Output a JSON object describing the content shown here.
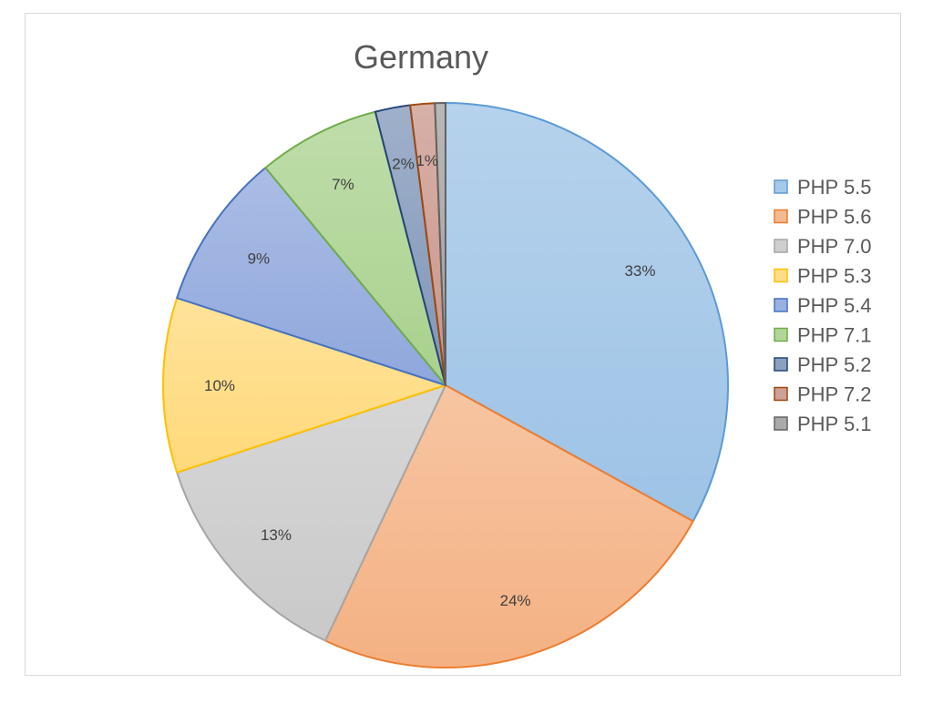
{
  "chart_data": {
    "type": "pie",
    "title": "Germany",
    "categories": [
      "PHP 5.5",
      "PHP 5.6",
      "PHP 7.0",
      "PHP 5.3",
      "PHP 5.4",
      "PHP 7.1",
      "PHP 5.2",
      "PHP 7.2",
      "PHP 5.1"
    ],
    "values": [
      33,
      24,
      13,
      10,
      9,
      7,
      2,
      1.4,
      0.6
    ],
    "data_labels": [
      "33%",
      "24%",
      "13%",
      "10%",
      "9%",
      "7%",
      "2%",
      "1%",
      ""
    ],
    "colors": [
      "#9dc3e6",
      "#f4b183",
      "#c9c9c9",
      "#ffd97a",
      "#8fa7dc",
      "#a9d18e",
      "#7f96b8",
      "#c9968a",
      "#a0a0a0"
    ],
    "border_colors": [
      "#5b9bd5",
      "#ed7d31",
      "#a5a5a5",
      "#ffc000",
      "#4472c4",
      "#70ad47",
      "#264478",
      "#9e480e",
      "#636363"
    ],
    "legend_position": "right",
    "start_angle_deg": 0,
    "direction": "clockwise"
  }
}
